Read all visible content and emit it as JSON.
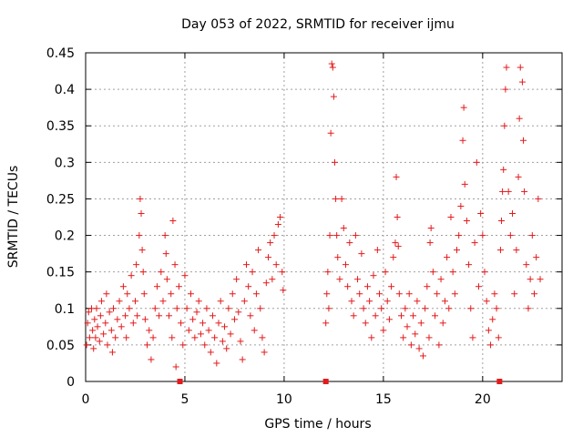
{
  "chart_data": {
    "type": "scatter",
    "title": "Day 053 of 2022, SRMTID for receiver ijmu",
    "xlabel": "GPS time / hours",
    "ylabel": "SRMTID / TECUs",
    "xlim": [
      0,
      24
    ],
    "ylim": [
      0,
      0.45
    ],
    "xticks": [
      {
        "value": 0,
        "label": "0"
      },
      {
        "value": 5,
        "label": "5"
      },
      {
        "value": 10,
        "label": "10"
      },
      {
        "value": 15,
        "label": "15"
      },
      {
        "value": 20,
        "label": "20"
      }
    ],
    "yticks": [
      {
        "value": 0,
        "label": "0"
      },
      {
        "value": 0.05,
        "label": "0.05"
      },
      {
        "value": 0.1,
        "label": "0.1"
      },
      {
        "value": 0.15,
        "label": "0.15"
      },
      {
        "value": 0.2,
        "label": "0.2"
      },
      {
        "value": 0.25,
        "label": "0.25"
      },
      {
        "value": 0.3,
        "label": "0.3"
      },
      {
        "value": 0.35,
        "label": "0.35"
      },
      {
        "value": 0.4,
        "label": "0.4"
      },
      {
        "value": 0.45,
        "label": "0.45"
      }
    ],
    "grid": true,
    "series": [
      {
        "name": "SRMTID",
        "color": "#e41a1c",
        "marker": "+",
        "points": [
          [
            0.05,
            0.05
          ],
          [
            0.1,
            0.08
          ],
          [
            0.15,
            0.095
          ],
          [
            0.2,
            0.06
          ],
          [
            0.3,
            0.1
          ],
          [
            0.35,
            0.07
          ],
          [
            0.4,
            0.045
          ],
          [
            0.45,
            0.085
          ],
          [
            0.5,
            0.06
          ],
          [
            0.55,
            0.1
          ],
          [
            0.6,
            0.075
          ],
          [
            0.7,
            0.055
          ],
          [
            0.75,
            0.09
          ],
          [
            0.8,
            0.11
          ],
          [
            0.9,
            0.065
          ],
          [
            1.0,
            0.08
          ],
          [
            1.05,
            0.12
          ],
          [
            1.1,
            0.05
          ],
          [
            1.2,
            0.095
          ],
          [
            1.3,
            0.07
          ],
          [
            1.35,
            0.04
          ],
          [
            1.4,
            0.1
          ],
          [
            1.5,
            0.06
          ],
          [
            1.6,
            0.085
          ],
          [
            1.7,
            0.11
          ],
          [
            1.8,
            0.075
          ],
          [
            1.9,
            0.13
          ],
          [
            2.0,
            0.09
          ],
          [
            2.05,
            0.06
          ],
          [
            2.1,
            0.12
          ],
          [
            2.2,
            0.1
          ],
          [
            2.3,
            0.145
          ],
          [
            2.4,
            0.08
          ],
          [
            2.5,
            0.11
          ],
          [
            2.55,
            0.16
          ],
          [
            2.6,
            0.09
          ],
          [
            2.7,
            0.2
          ],
          [
            2.75,
            0.25
          ],
          [
            2.8,
            0.23
          ],
          [
            2.85,
            0.18
          ],
          [
            2.9,
            0.15
          ],
          [
            2.95,
            0.12
          ],
          [
            3.0,
            0.085
          ],
          [
            3.1,
            0.05
          ],
          [
            3.2,
            0.07
          ],
          [
            3.3,
            0.03
          ],
          [
            3.4,
            0.06
          ],
          [
            3.5,
            0.1
          ],
          [
            3.6,
            0.13
          ],
          [
            3.7,
            0.09
          ],
          [
            3.8,
            0.15
          ],
          [
            3.9,
            0.11
          ],
          [
            4.0,
            0.2
          ],
          [
            4.05,
            0.175
          ],
          [
            4.1,
            0.14
          ],
          [
            4.2,
            0.09
          ],
          [
            4.3,
            0.12
          ],
          [
            4.35,
            0.06
          ],
          [
            4.4,
            0.22
          ],
          [
            4.5,
            0.16
          ],
          [
            4.55,
            0.02
          ],
          [
            4.6,
            0.1
          ],
          [
            4.7,
            0.13
          ],
          [
            4.8,
            0.08
          ],
          [
            4.9,
            0.05
          ],
          [
            5.0,
            0.145
          ],
          [
            5.1,
            0.1
          ],
          [
            5.2,
            0.07
          ],
          [
            5.3,
            0.12
          ],
          [
            5.4,
            0.085
          ],
          [
            5.5,
            0.06
          ],
          [
            5.6,
            0.095
          ],
          [
            5.7,
            0.11
          ],
          [
            5.8,
            0.065
          ],
          [
            5.9,
            0.08
          ],
          [
            6.0,
            0.05
          ],
          [
            6.1,
            0.1
          ],
          [
            6.2,
            0.07
          ],
          [
            6.3,
            0.04
          ],
          [
            6.4,
            0.09
          ],
          [
            6.5,
            0.06
          ],
          [
            6.6,
            0.025
          ],
          [
            6.7,
            0.08
          ],
          [
            6.8,
            0.11
          ],
          [
            6.9,
            0.055
          ],
          [
            7.0,
            0.075
          ],
          [
            7.1,
            0.045
          ],
          [
            7.2,
            0.1
          ],
          [
            7.3,
            0.065
          ],
          [
            7.4,
            0.12
          ],
          [
            7.5,
            0.085
          ],
          [
            7.6,
            0.14
          ],
          [
            7.7,
            0.095
          ],
          [
            7.8,
            0.055
          ],
          [
            7.9,
            0.03
          ],
          [
            8.0,
            0.11
          ],
          [
            8.1,
            0.16
          ],
          [
            8.2,
            0.13
          ],
          [
            8.3,
            0.09
          ],
          [
            8.4,
            0.15
          ],
          [
            8.5,
            0.07
          ],
          [
            8.6,
            0.12
          ],
          [
            8.7,
            0.18
          ],
          [
            8.8,
            0.1
          ],
          [
            8.9,
            0.06
          ],
          [
            9.0,
            0.04
          ],
          [
            9.1,
            0.135
          ],
          [
            9.2,
            0.17
          ],
          [
            9.3,
            0.19
          ],
          [
            9.4,
            0.14
          ],
          [
            9.5,
            0.2
          ],
          [
            9.6,
            0.16
          ],
          [
            9.7,
            0.215
          ],
          [
            9.8,
            0.225
          ],
          [
            9.9,
            0.15
          ],
          [
            9.95,
            0.125
          ],
          [
            12.1,
            0.08
          ],
          [
            12.15,
            0.12
          ],
          [
            12.2,
            0.15
          ],
          [
            12.25,
            0.1
          ],
          [
            12.3,
            0.2
          ],
          [
            12.35,
            0.34
          ],
          [
            12.4,
            0.435
          ],
          [
            12.45,
            0.43
          ],
          [
            12.5,
            0.39
          ],
          [
            12.55,
            0.3
          ],
          [
            12.6,
            0.25
          ],
          [
            12.65,
            0.2
          ],
          [
            12.7,
            0.17
          ],
          [
            12.8,
            0.14
          ],
          [
            12.9,
            0.25
          ],
          [
            13.0,
            0.21
          ],
          [
            13.1,
            0.16
          ],
          [
            13.2,
            0.13
          ],
          [
            13.3,
            0.19
          ],
          [
            13.4,
            0.11
          ],
          [
            13.5,
            0.09
          ],
          [
            13.6,
            0.2
          ],
          [
            13.7,
            0.14
          ],
          [
            13.8,
            0.12
          ],
          [
            13.9,
            0.175
          ],
          [
            14.0,
            0.1
          ],
          [
            14.1,
            0.08
          ],
          [
            14.2,
            0.13
          ],
          [
            14.3,
            0.11
          ],
          [
            14.4,
            0.06
          ],
          [
            14.5,
            0.145
          ],
          [
            14.6,
            0.09
          ],
          [
            14.7,
            0.18
          ],
          [
            14.8,
            0.12
          ],
          [
            14.9,
            0.1
          ],
          [
            15.0,
            0.07
          ],
          [
            15.1,
            0.15
          ],
          [
            15.2,
            0.11
          ],
          [
            15.3,
            0.085
          ],
          [
            15.4,
            0.13
          ],
          [
            15.5,
            0.17
          ],
          [
            15.6,
            0.19
          ],
          [
            15.65,
            0.28
          ],
          [
            15.7,
            0.225
          ],
          [
            15.75,
            0.185
          ],
          [
            15.8,
            0.12
          ],
          [
            15.9,
            0.09
          ],
          [
            16.0,
            0.06
          ],
          [
            16.1,
            0.1
          ],
          [
            16.2,
            0.075
          ],
          [
            16.3,
            0.12
          ],
          [
            16.4,
            0.05
          ],
          [
            16.5,
            0.09
          ],
          [
            16.6,
            0.065
          ],
          [
            16.7,
            0.11
          ],
          [
            16.8,
            0.045
          ],
          [
            16.9,
            0.08
          ],
          [
            17.0,
            0.035
          ],
          [
            17.1,
            0.1
          ],
          [
            17.2,
            0.13
          ],
          [
            17.3,
            0.06
          ],
          [
            17.35,
            0.19
          ],
          [
            17.4,
            0.21
          ],
          [
            17.5,
            0.15
          ],
          [
            17.6,
            0.09
          ],
          [
            17.7,
            0.12
          ],
          [
            17.8,
            0.05
          ],
          [
            17.9,
            0.14
          ],
          [
            18.0,
            0.08
          ],
          [
            18.1,
            0.11
          ],
          [
            18.2,
            0.17
          ],
          [
            18.3,
            0.1
          ],
          [
            18.4,
            0.225
          ],
          [
            18.5,
            0.15
          ],
          [
            18.6,
            0.12
          ],
          [
            18.7,
            0.18
          ],
          [
            18.8,
            0.2
          ],
          [
            18.9,
            0.24
          ],
          [
            19.0,
            0.33
          ],
          [
            19.05,
            0.375
          ],
          [
            19.1,
            0.27
          ],
          [
            19.2,
            0.22
          ],
          [
            19.3,
            0.16
          ],
          [
            19.4,
            0.1
          ],
          [
            19.5,
            0.06
          ],
          [
            19.6,
            0.19
          ],
          [
            19.7,
            0.3
          ],
          [
            19.8,
            0.13
          ],
          [
            19.9,
            0.23
          ],
          [
            20.0,
            0.2
          ],
          [
            20.1,
            0.15
          ],
          [
            20.2,
            0.11
          ],
          [
            20.3,
            0.07
          ],
          [
            20.4,
            0.05
          ],
          [
            20.5,
            0.085
          ],
          [
            20.6,
            0.12
          ],
          [
            20.7,
            0.1
          ],
          [
            20.8,
            0.06
          ],
          [
            20.9,
            0.18
          ],
          [
            20.95,
            0.22
          ],
          [
            21.0,
            0.26
          ],
          [
            21.05,
            0.29
          ],
          [
            21.1,
            0.35
          ],
          [
            21.15,
            0.4
          ],
          [
            21.2,
            0.43
          ],
          [
            21.3,
            0.26
          ],
          [
            21.4,
            0.2
          ],
          [
            21.5,
            0.23
          ],
          [
            21.6,
            0.12
          ],
          [
            21.7,
            0.18
          ],
          [
            21.8,
            0.28
          ],
          [
            21.85,
            0.36
          ],
          [
            21.9,
            0.43
          ],
          [
            22.0,
            0.41
          ],
          [
            22.05,
            0.33
          ],
          [
            22.1,
            0.26
          ],
          [
            22.2,
            0.16
          ],
          [
            22.3,
            0.1
          ],
          [
            22.4,
            0.14
          ],
          [
            22.5,
            0.2
          ],
          [
            22.6,
            0.12
          ],
          [
            22.7,
            0.17
          ],
          [
            22.8,
            0.25
          ],
          [
            22.9,
            0.14
          ]
        ]
      }
    ],
    "axis_markers": [
      {
        "x": 4.75,
        "y": 0
      },
      {
        "x": 12.1,
        "y": 0
      },
      {
        "x": 20.85,
        "y": 0
      }
    ]
  }
}
